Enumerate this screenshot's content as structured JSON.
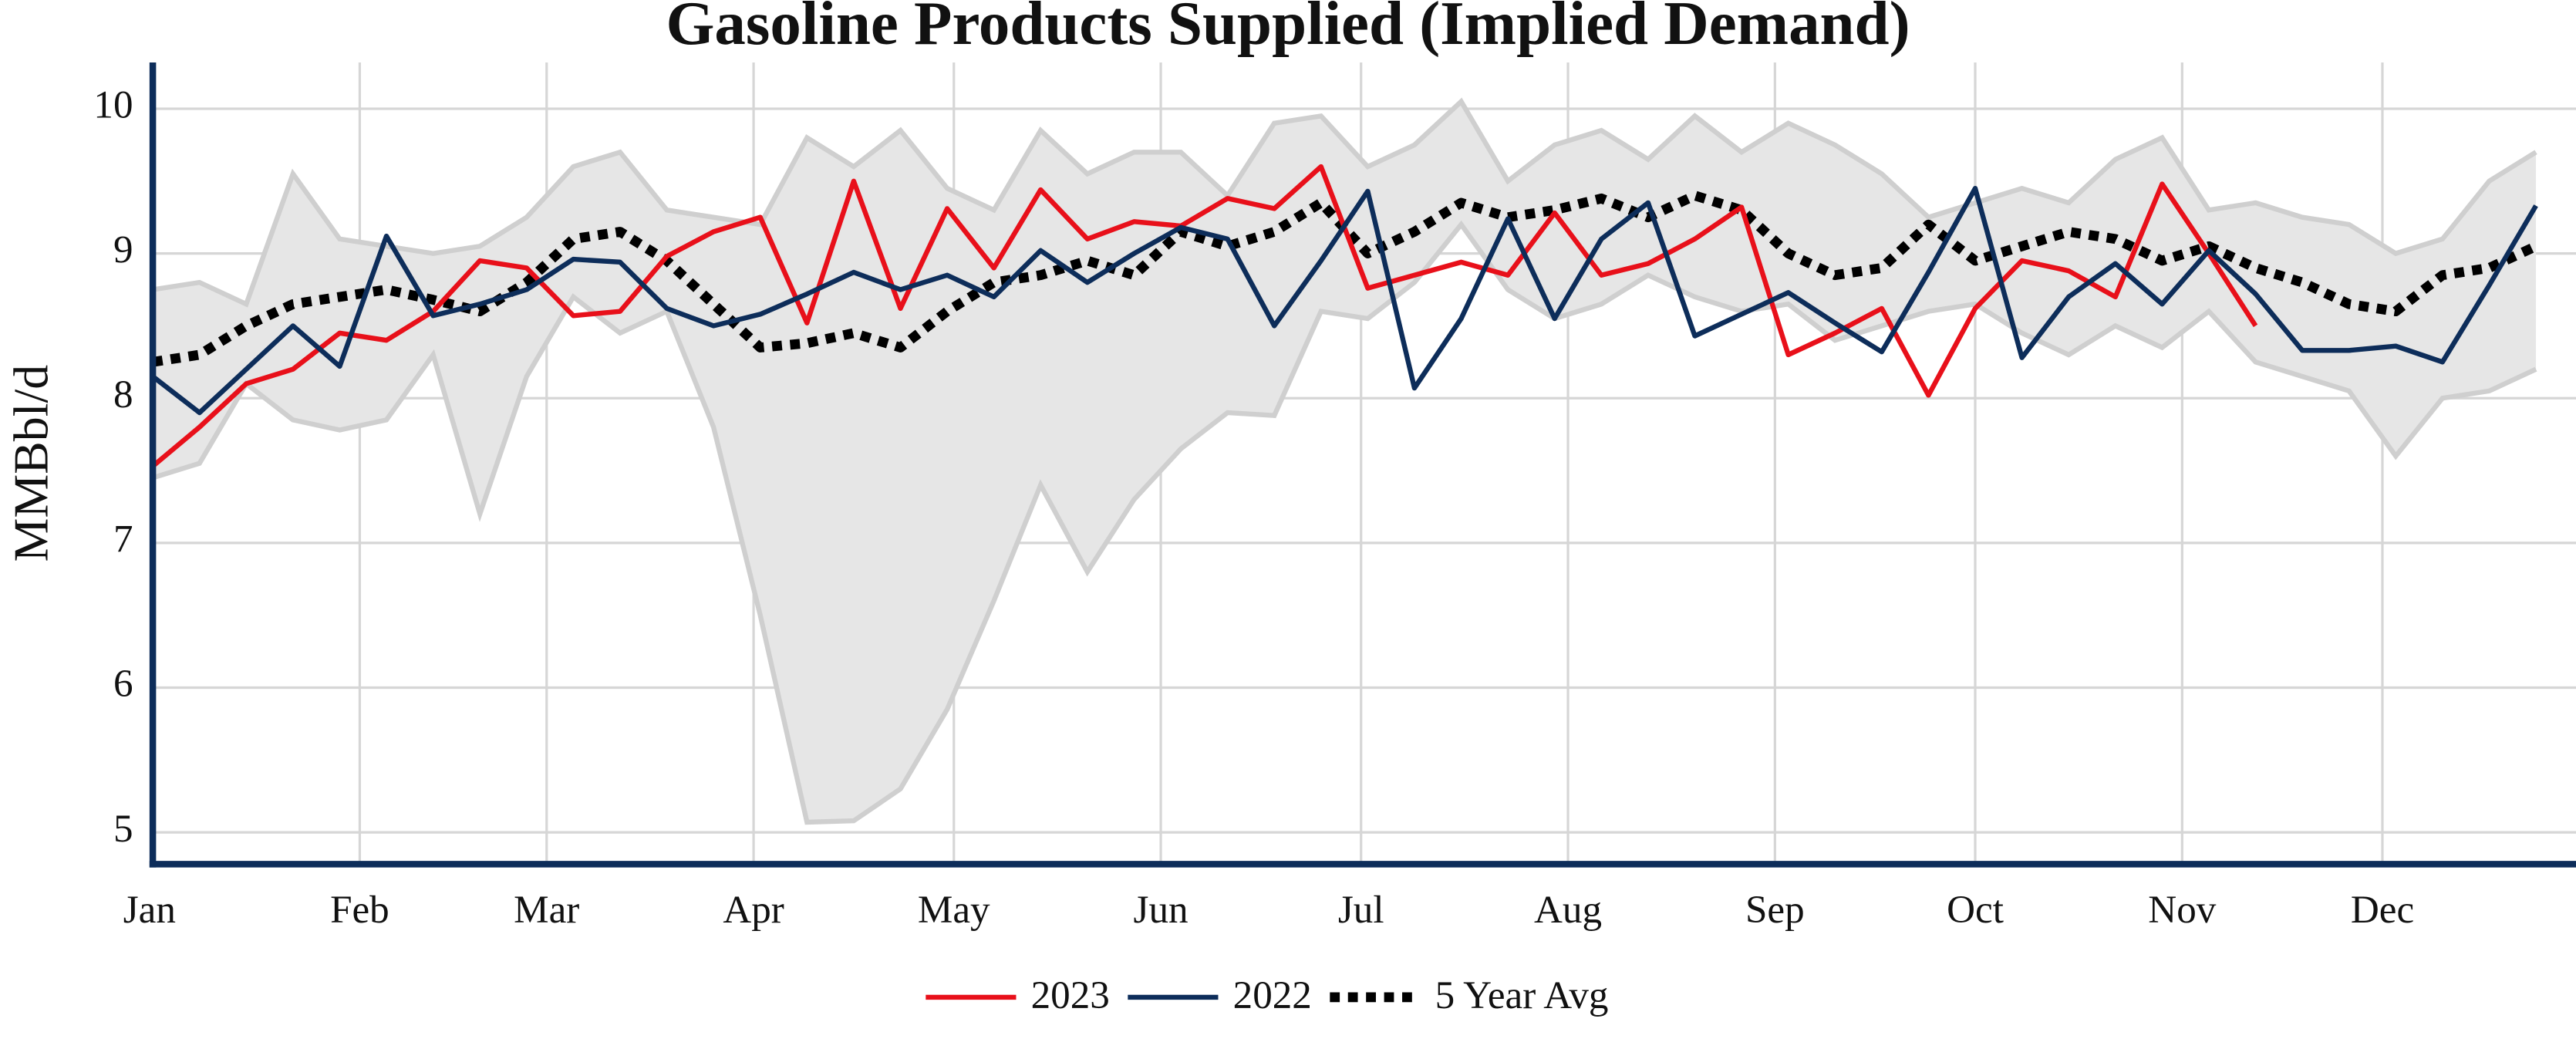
{
  "chart_data": {
    "type": "line",
    "title": "Gasoline Products Supplied (Implied Demand)",
    "y_label": "MMBbl/d",
    "xlim": [
      1,
      364
    ],
    "xticks": [
      {
        "value": 1,
        "label": "Jan"
      },
      {
        "value": 32,
        "label": "Feb"
      },
      {
        "value": 60,
        "label": "Mar"
      },
      {
        "value": 91,
        "label": "Apr"
      },
      {
        "value": 121,
        "label": "May"
      },
      {
        "value": 152,
        "label": "Jun"
      },
      {
        "value": 182,
        "label": "Jul"
      },
      {
        "value": 213,
        "label": "Aug"
      },
      {
        "value": 244,
        "label": "Sep"
      },
      {
        "value": 274,
        "label": "Oct"
      },
      {
        "value": 305,
        "label": "Nov"
      },
      {
        "value": 335,
        "label": "Dec"
      }
    ],
    "ylim": [
      4.78,
      10.32
    ],
    "yticks": [
      5,
      6,
      7,
      8,
      9,
      10
    ],
    "grid": true,
    "legend": "bottom",
    "x": [
      1,
      8,
      15,
      22,
      29,
      36,
      43,
      50,
      57,
      64,
      71,
      78,
      85,
      92,
      99,
      106,
      113,
      120,
      127,
      134,
      141,
      148,
      155,
      162,
      169,
      176,
      183,
      190,
      197,
      204,
      211,
      218,
      225,
      232,
      239,
      246,
      253,
      260,
      267,
      274,
      281,
      288,
      295,
      302,
      309,
      316,
      323,
      330,
      337,
      344,
      351,
      358
    ],
    "band": {
      "color": "#e6e6e6",
      "edge_color": "#cfcfcf",
      "upper": [
        8.75,
        8.8,
        8.65,
        9.55,
        9.1,
        9.05,
        9.0,
        9.05,
        9.25,
        9.6,
        9.7,
        9.3,
        9.25,
        9.2,
        9.8,
        9.6,
        9.85,
        9.45,
        9.3,
        9.85,
        9.55,
        9.7,
        9.7,
        9.4,
        9.9,
        9.95,
        9.6,
        9.75,
        10.05,
        9.5,
        9.75,
        9.85,
        9.65,
        9.95,
        9.7,
        9.9,
        9.75,
        9.55,
        9.25,
        9.35,
        9.45,
        9.35,
        9.65,
        9.8,
        9.3,
        9.35,
        9.25,
        9.2,
        9.0,
        9.1,
        9.5,
        9.7
      ],
      "lower": [
        7.45,
        7.55,
        8.1,
        7.85,
        7.78,
        7.85,
        8.3,
        7.2,
        8.15,
        8.7,
        8.45,
        8.6,
        7.8,
        6.5,
        5.07,
        5.08,
        5.3,
        5.85,
        6.6,
        7.4,
        6.8,
        7.3,
        7.65,
        7.9,
        7.88,
        8.6,
        8.55,
        8.8,
        9.2,
        8.75,
        8.55,
        8.65,
        8.85,
        8.7,
        8.6,
        8.65,
        8.4,
        8.5,
        8.6,
        8.65,
        8.45,
        8.3,
        8.5,
        8.35,
        8.6,
        8.25,
        8.15,
        8.05,
        7.6,
        8.0,
        8.05,
        8.2
      ]
    },
    "series": [
      {
        "name": "2023",
        "color": "#e8101a",
        "dash": "solid",
        "values": [
          7.53,
          7.8,
          8.1,
          8.2,
          8.45,
          8.4,
          8.6,
          8.95,
          8.9,
          8.57,
          8.6,
          8.98,
          9.15,
          9.25,
          8.52,
          9.5,
          8.62,
          9.31,
          8.9,
          9.44,
          9.1,
          9.22,
          9.19,
          9.38,
          9.31,
          9.6,
          8.76,
          8.85,
          8.94,
          8.85,
          9.28,
          8.85,
          8.93,
          9.1,
          9.32,
          8.3,
          8.45,
          8.62,
          8.02,
          8.62,
          8.95,
          8.88,
          8.7,
          9.48,
          9.0,
          8.5,
          null,
          null,
          null,
          null,
          null,
          null
        ]
      },
      {
        "name": "2022",
        "color": "#0d2d5a",
        "dash": "solid",
        "values": [
          8.15,
          7.9,
          8.2,
          8.5,
          8.22,
          9.12,
          8.57,
          8.65,
          8.75,
          8.96,
          8.94,
          8.62,
          8.5,
          8.58,
          8.72,
          8.87,
          8.75,
          8.85,
          8.7,
          9.02,
          8.8,
          9.0,
          9.18,
          9.1,
          8.5,
          8.95,
          9.43,
          8.07,
          8.55,
          9.24,
          8.55,
          9.1,
          9.35,
          8.43,
          8.58,
          8.73,
          8.52,
          8.32,
          8.87,
          9.45,
          8.28,
          8.7,
          8.93,
          8.65,
          9.02,
          8.72,
          8.33,
          8.33,
          8.36,
          8.25,
          8.78,
          9.33
        ]
      },
      {
        "name": "5 Year Avg",
        "color": "#000000",
        "dash": "dotted",
        "values": [
          8.25,
          8.3,
          8.5,
          8.65,
          8.7,
          8.75,
          8.68,
          8.6,
          8.8,
          9.1,
          9.15,
          8.95,
          8.65,
          8.35,
          8.38,
          8.45,
          8.35,
          8.6,
          8.8,
          8.85,
          8.95,
          8.85,
          9.15,
          9.05,
          9.15,
          9.35,
          9.0,
          9.15,
          9.35,
          9.25,
          9.3,
          9.38,
          9.25,
          9.4,
          9.3,
          9.0,
          8.85,
          8.9,
          9.2,
          8.95,
          9.05,
          9.15,
          9.1,
          8.95,
          9.05,
          8.9,
          8.8,
          8.65,
          8.6,
          8.85,
          8.9,
          9.05
        ]
      }
    ]
  }
}
